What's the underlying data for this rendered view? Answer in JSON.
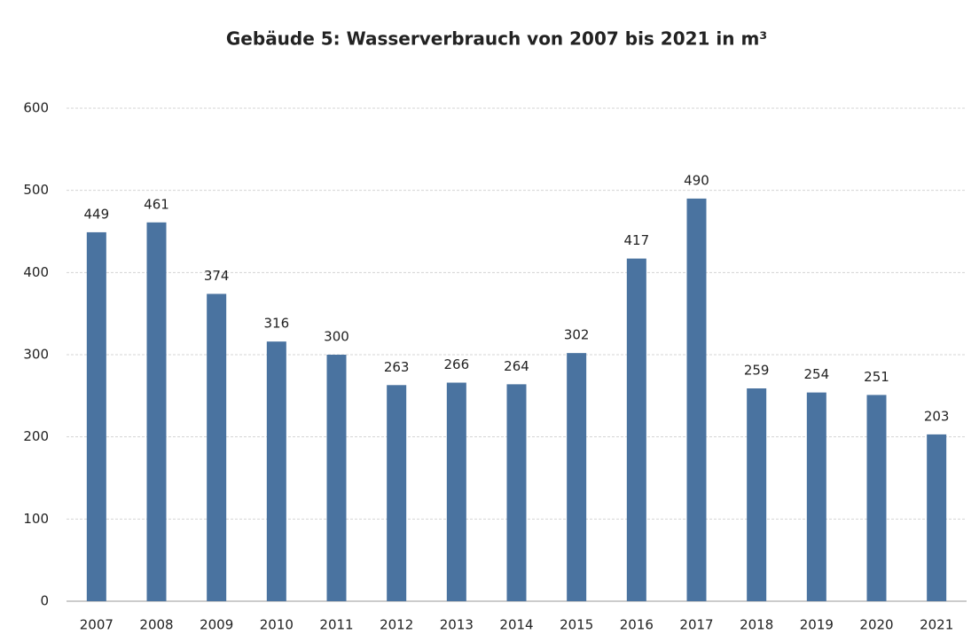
{
  "chart_data": {
    "type": "bar",
    "title": "Gebäude 5: Wasserverbrauch von 2007 bis 2021 in m³",
    "categories": [
      "2007",
      "2008",
      "2009",
      "2010",
      "2011",
      "2012",
      "2013",
      "2014",
      "2015",
      "2016",
      "2017",
      "2018",
      "2019",
      "2020",
      "2021"
    ],
    "values": [
      449,
      461,
      374,
      316,
      300,
      263,
      266,
      264,
      302,
      417,
      490,
      259,
      254,
      251,
      203
    ],
    "color": "#4a73a0",
    "ylim": [
      0,
      600
    ],
    "yticks": [
      0,
      100,
      200,
      300,
      400,
      500,
      600
    ],
    "grid": true
  }
}
